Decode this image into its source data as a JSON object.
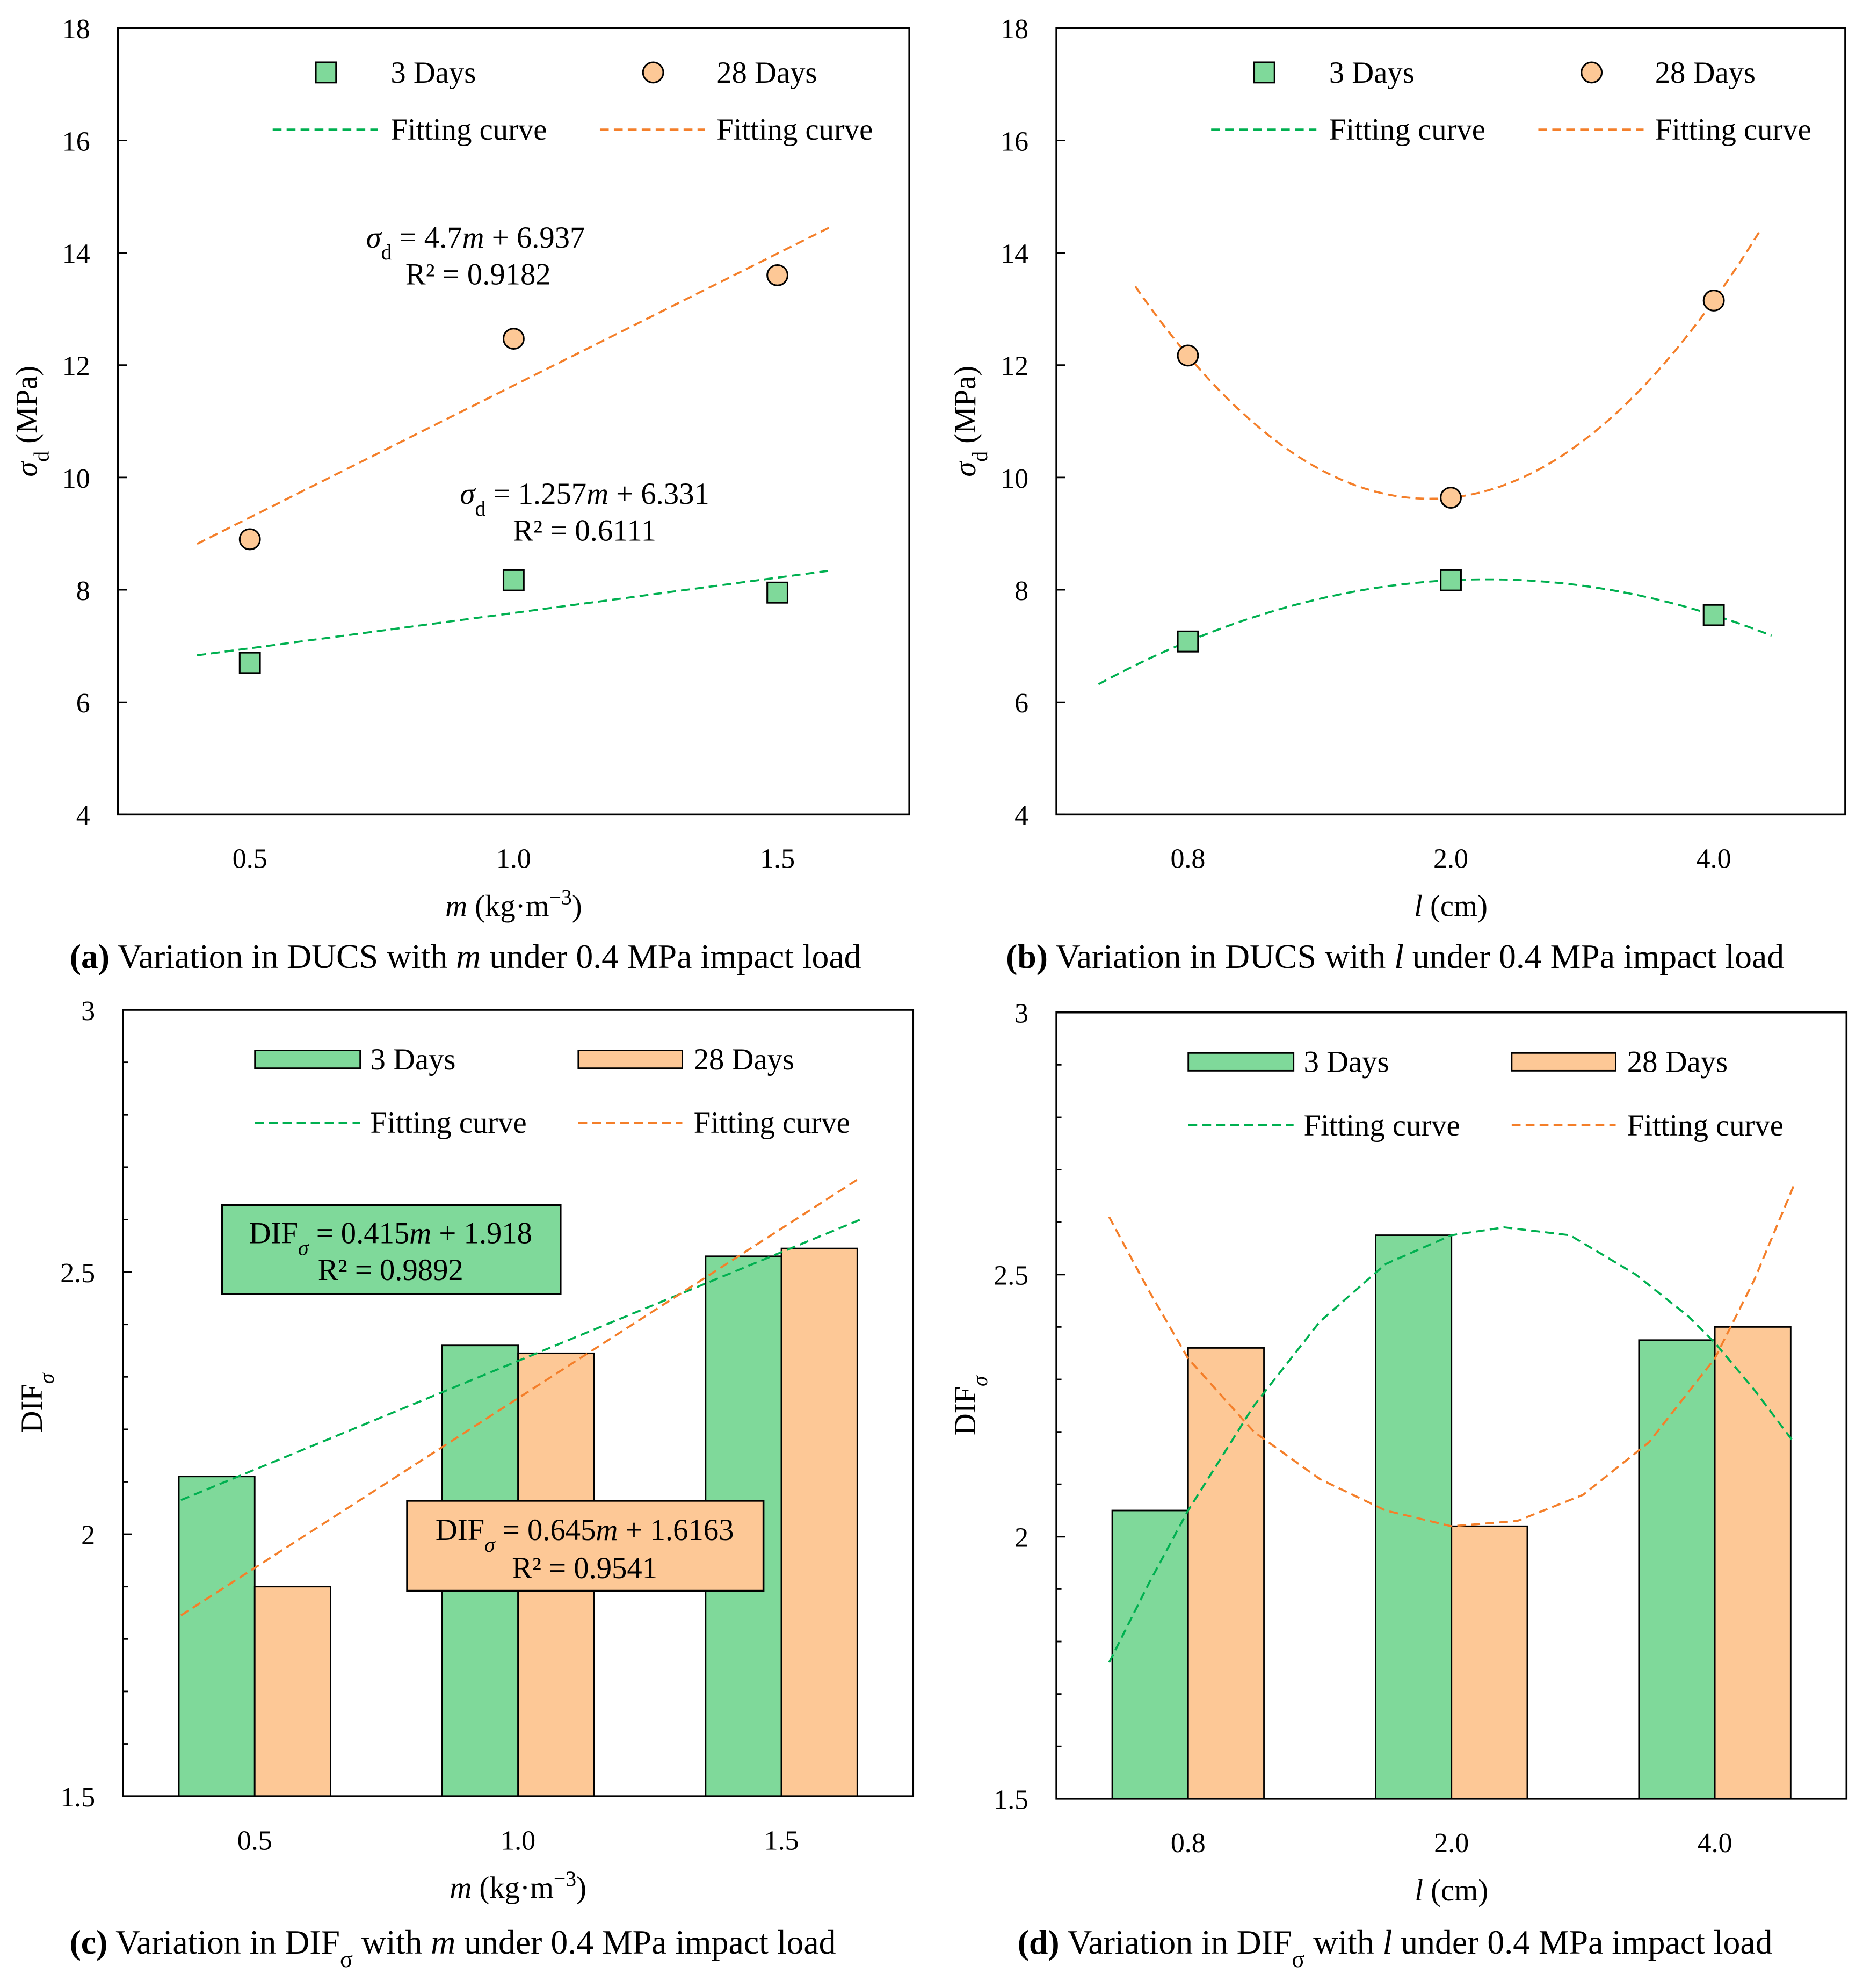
{
  "colors": {
    "green_fill": "#7FD99A",
    "orange_fill": "#FDC896",
    "green_line": "#00B050",
    "orange_line": "#F47F2A"
  },
  "chart_data": [
    {
      "id": "a",
      "type": "scatter",
      "caption": [
        {
          "t": "(a)",
          "b": true
        },
        {
          "t": " Variation in DUCS with "
        },
        {
          "t": "m",
          "i": true
        },
        {
          "t": " under 0.4 MPa impact load"
        }
      ],
      "ylabel": [
        {
          "t": "σ",
          "i": true
        },
        {
          "t": "d",
          "sub": true
        },
        {
          "t": " (MPa)"
        }
      ],
      "xlabel": [
        {
          "t": "m",
          "i": true
        },
        {
          "t": " (kg·m"
        },
        {
          "t": "−3",
          "sup": true
        },
        {
          "t": ")"
        }
      ],
      "xlim": [
        0.25,
        1.75
      ],
      "ylim": [
        4,
        18
      ],
      "yticks": [
        4,
        6,
        8,
        10,
        12,
        14,
        16,
        18
      ],
      "xticks": [
        0.5,
        1.0,
        1.5
      ],
      "xtick_labels": [
        "0.5",
        "1.0",
        "1.5"
      ],
      "legend": [
        "3 Days",
        "28 Days",
        "Fitting curve",
        "Fitting curve"
      ],
      "series": [
        {
          "name": "3 Days",
          "x": [
            0.5,
            1.0,
            1.5
          ],
          "y": [
            6.7,
            8.17,
            7.95
          ],
          "marker": "square",
          "fit": {
            "type": "linear",
            "slope": 1.257,
            "intercept": 6.331,
            "x_range": [
              0.4,
              1.6
            ]
          }
        },
        {
          "name": "28 Days",
          "x": [
            0.5,
            1.0,
            1.5
          ],
          "y": [
            8.9,
            12.47,
            13.6
          ],
          "marker": "circle",
          "fit": {
            "type": "linear",
            "slope": 4.7,
            "intercept": 6.937,
            "x_range": [
              0.4,
              1.6
            ]
          }
        }
      ],
      "annotations": [
        [
          {
            "t": "σ",
            "i": true
          },
          {
            "t": "d",
            "sub": true
          },
          {
            "t": "  = 4.7"
          },
          {
            "t": "m",
            "i": true
          },
          {
            "t": " + 6.937"
          }
        ],
        [
          {
            "t": "R² = 0.9182"
          }
        ],
        [
          {
            "t": "σ",
            "i": true
          },
          {
            "t": "d",
            "sub": true
          },
          {
            "t": " = 1.257"
          },
          {
            "t": "m",
            "i": true
          },
          {
            "t": " + 6.331"
          }
        ],
        [
          {
            "t": "R² = 0.6111"
          }
        ]
      ]
    },
    {
      "id": "b",
      "type": "scatter",
      "caption": [
        {
          "t": "(b)",
          "b": true
        },
        {
          "t": " Variation in DUCS with "
        },
        {
          "t": "l",
          "i": true
        },
        {
          "t": " under 0.4 MPa impact load"
        }
      ],
      "ylabel": [
        {
          "t": "σ",
          "i": true
        },
        {
          "t": "d",
          "sub": true
        },
        {
          "t": " (MPa)"
        }
      ],
      "xlabel": [
        {
          "t": "l",
          "i": true
        },
        {
          "t": " (cm)"
        }
      ],
      "xlim": [
        0.5,
        3.5
      ],
      "ylim": [
        4,
        18
      ],
      "yticks": [
        4,
        6,
        8,
        10,
        12,
        14,
        16,
        18
      ],
      "xticks": [
        1,
        2,
        3
      ],
      "xtick_labels": [
        "0.8",
        "2.0",
        "4.0"
      ],
      "legend": [
        "3 Days",
        "28 Days",
        "Fitting curve",
        "Fitting curve"
      ],
      "series": [
        {
          "name": "3 Days",
          "x": [
            1,
            2,
            3
          ],
          "y": [
            7.08,
            8.17,
            7.55
          ],
          "marker": "square",
          "fit": {
            "type": "quadratic",
            "a": -0.855,
            "b": 3.655,
            "c": 4.28,
            "x_range": [
              0.66,
              3.22
            ]
          }
        },
        {
          "name": "28 Days",
          "x": [
            1,
            2,
            3
          ],
          "y": [
            12.17,
            9.64,
            13.15
          ],
          "marker": "circle",
          "fit": {
            "type": "quadratic",
            "a": 3.02,
            "b": -11.59,
            "c": 20.74,
            "x_range": [
              0.8,
              3.18
            ]
          }
        }
      ],
      "annotations": []
    },
    {
      "id": "c",
      "type": "bar",
      "caption": [
        {
          "t": "(c)",
          "b": true
        },
        {
          "t": " Variation in DIF"
        },
        {
          "t": "σ",
          "sub": true
        },
        {
          "t": " with "
        },
        {
          "t": "m",
          "i": true
        },
        {
          "t": " under 0.4 MPa impact load"
        }
      ],
      "ylabel": [
        {
          "t": "DIF"
        },
        {
          "t": "σ",
          "sub": true,
          "i": true
        }
      ],
      "xlabel": [
        {
          "t": "m",
          "i": true
        },
        {
          "t": " (kg·m"
        },
        {
          "t": "−3",
          "sup": true
        },
        {
          "t": ")"
        }
      ],
      "xlim": [
        0.25,
        1.75
      ],
      "ylim": [
        1.5,
        3
      ],
      "yticks": [
        1.5,
        2,
        2.5,
        3
      ],
      "xticks": [
        0.5,
        1.0,
        1.5
      ],
      "xtick_labels": [
        "0.5",
        "1.0",
        "1.5"
      ],
      "legend": [
        "3 Days",
        "28 Days",
        "Fitting curve",
        "Fitting curve"
      ],
      "series": [
        {
          "name": "3 Days",
          "x": [
            0.5,
            1.0,
            1.5
          ],
          "y": [
            2.11,
            2.36,
            2.53
          ],
          "fit": {
            "type": "points",
            "points": [
              [
                0.36,
                2.065
              ],
              [
                1.65,
                2.6
              ]
            ]
          }
        },
        {
          "name": "28 Days",
          "x": [
            0.5,
            1.0,
            1.5
          ],
          "y": [
            1.9,
            2.345,
            2.545
          ],
          "fit": {
            "type": "points",
            "points": [
              [
                0.36,
                1.845
              ],
              [
                1.65,
                2.68
              ]
            ]
          }
        }
      ],
      "annotations": [
        [
          {
            "t": "DIF"
          },
          {
            "t": "σ",
            "sub": true,
            "i": true
          },
          {
            "t": " = 0.415"
          },
          {
            "t": "m",
            "i": true
          },
          {
            "t": " + 1.918"
          }
        ],
        [
          {
            "t": "R² = 0.9892"
          }
        ],
        [
          {
            "t": "DIF"
          },
          {
            "t": "σ",
            "sub": true,
            "i": true
          },
          {
            "t": " = 0.645"
          },
          {
            "t": "m",
            "i": true
          },
          {
            "t": " + 1.6163"
          }
        ],
        [
          {
            "t": "R² = 0.9541"
          }
        ]
      ]
    },
    {
      "id": "d",
      "type": "bar",
      "caption": [
        {
          "t": "(d)",
          "b": true
        },
        {
          "t": " Variation in DIF"
        },
        {
          "t": "σ",
          "sub": true
        },
        {
          "t": " with "
        },
        {
          "t": "l",
          "i": true
        },
        {
          "t": " under 0.4 MPa impact load"
        }
      ],
      "ylabel": [
        {
          "t": "DIF"
        },
        {
          "t": "σ",
          "sub": true,
          "i": true
        }
      ],
      "xlabel": [
        {
          "t": "l",
          "i": true
        },
        {
          "t": " (cm)"
        }
      ],
      "xlim": [
        0.5,
        3.5
      ],
      "ylim": [
        1.5,
        3
      ],
      "yticks": [
        1.5,
        2,
        2.5,
        3
      ],
      "xticks": [
        1,
        2,
        3
      ],
      "xtick_labels": [
        "0.8",
        "2.0",
        "4.0"
      ],
      "legend": [
        "3 Days",
        "28 Days",
        "Fitting curve",
        "Fitting curve"
      ],
      "series": [
        {
          "name": "3 Days",
          "x": [
            1,
            2,
            3
          ],
          "y": [
            2.05,
            2.575,
            2.375
          ],
          "fit": {
            "type": "points",
            "points": [
              [
                0.7,
                1.76
              ],
              [
                0.85,
                1.91
              ],
              [
                1.0,
                2.05
              ],
              [
                1.25,
                2.25
              ],
              [
                1.5,
                2.41
              ],
              [
                1.75,
                2.52
              ],
              [
                2.0,
                2.575
              ],
              [
                2.2,
                2.59
              ],
              [
                2.45,
                2.575
              ],
              [
                2.7,
                2.5
              ],
              [
                2.9,
                2.42
              ],
              [
                3.0,
                2.37
              ],
              [
                3.15,
                2.28
              ],
              [
                3.3,
                2.18
              ]
            ]
          }
        },
        {
          "name": "28 Days",
          "x": [
            1,
            2,
            3
          ],
          "y": [
            2.36,
            2.02,
            2.4
          ],
          "fit": {
            "type": "points",
            "points": [
              [
                0.7,
                2.61
              ],
              [
                0.85,
                2.47
              ],
              [
                1.0,
                2.34
              ],
              [
                1.25,
                2.2
              ],
              [
                1.5,
                2.11
              ],
              [
                1.75,
                2.05
              ],
              [
                2.0,
                2.02
              ],
              [
                2.25,
                2.03
              ],
              [
                2.5,
                2.08
              ],
              [
                2.75,
                2.18
              ],
              [
                3.0,
                2.34
              ],
              [
                3.15,
                2.49
              ],
              [
                3.3,
                2.67
              ]
            ]
          }
        }
      ],
      "annotations": []
    }
  ]
}
